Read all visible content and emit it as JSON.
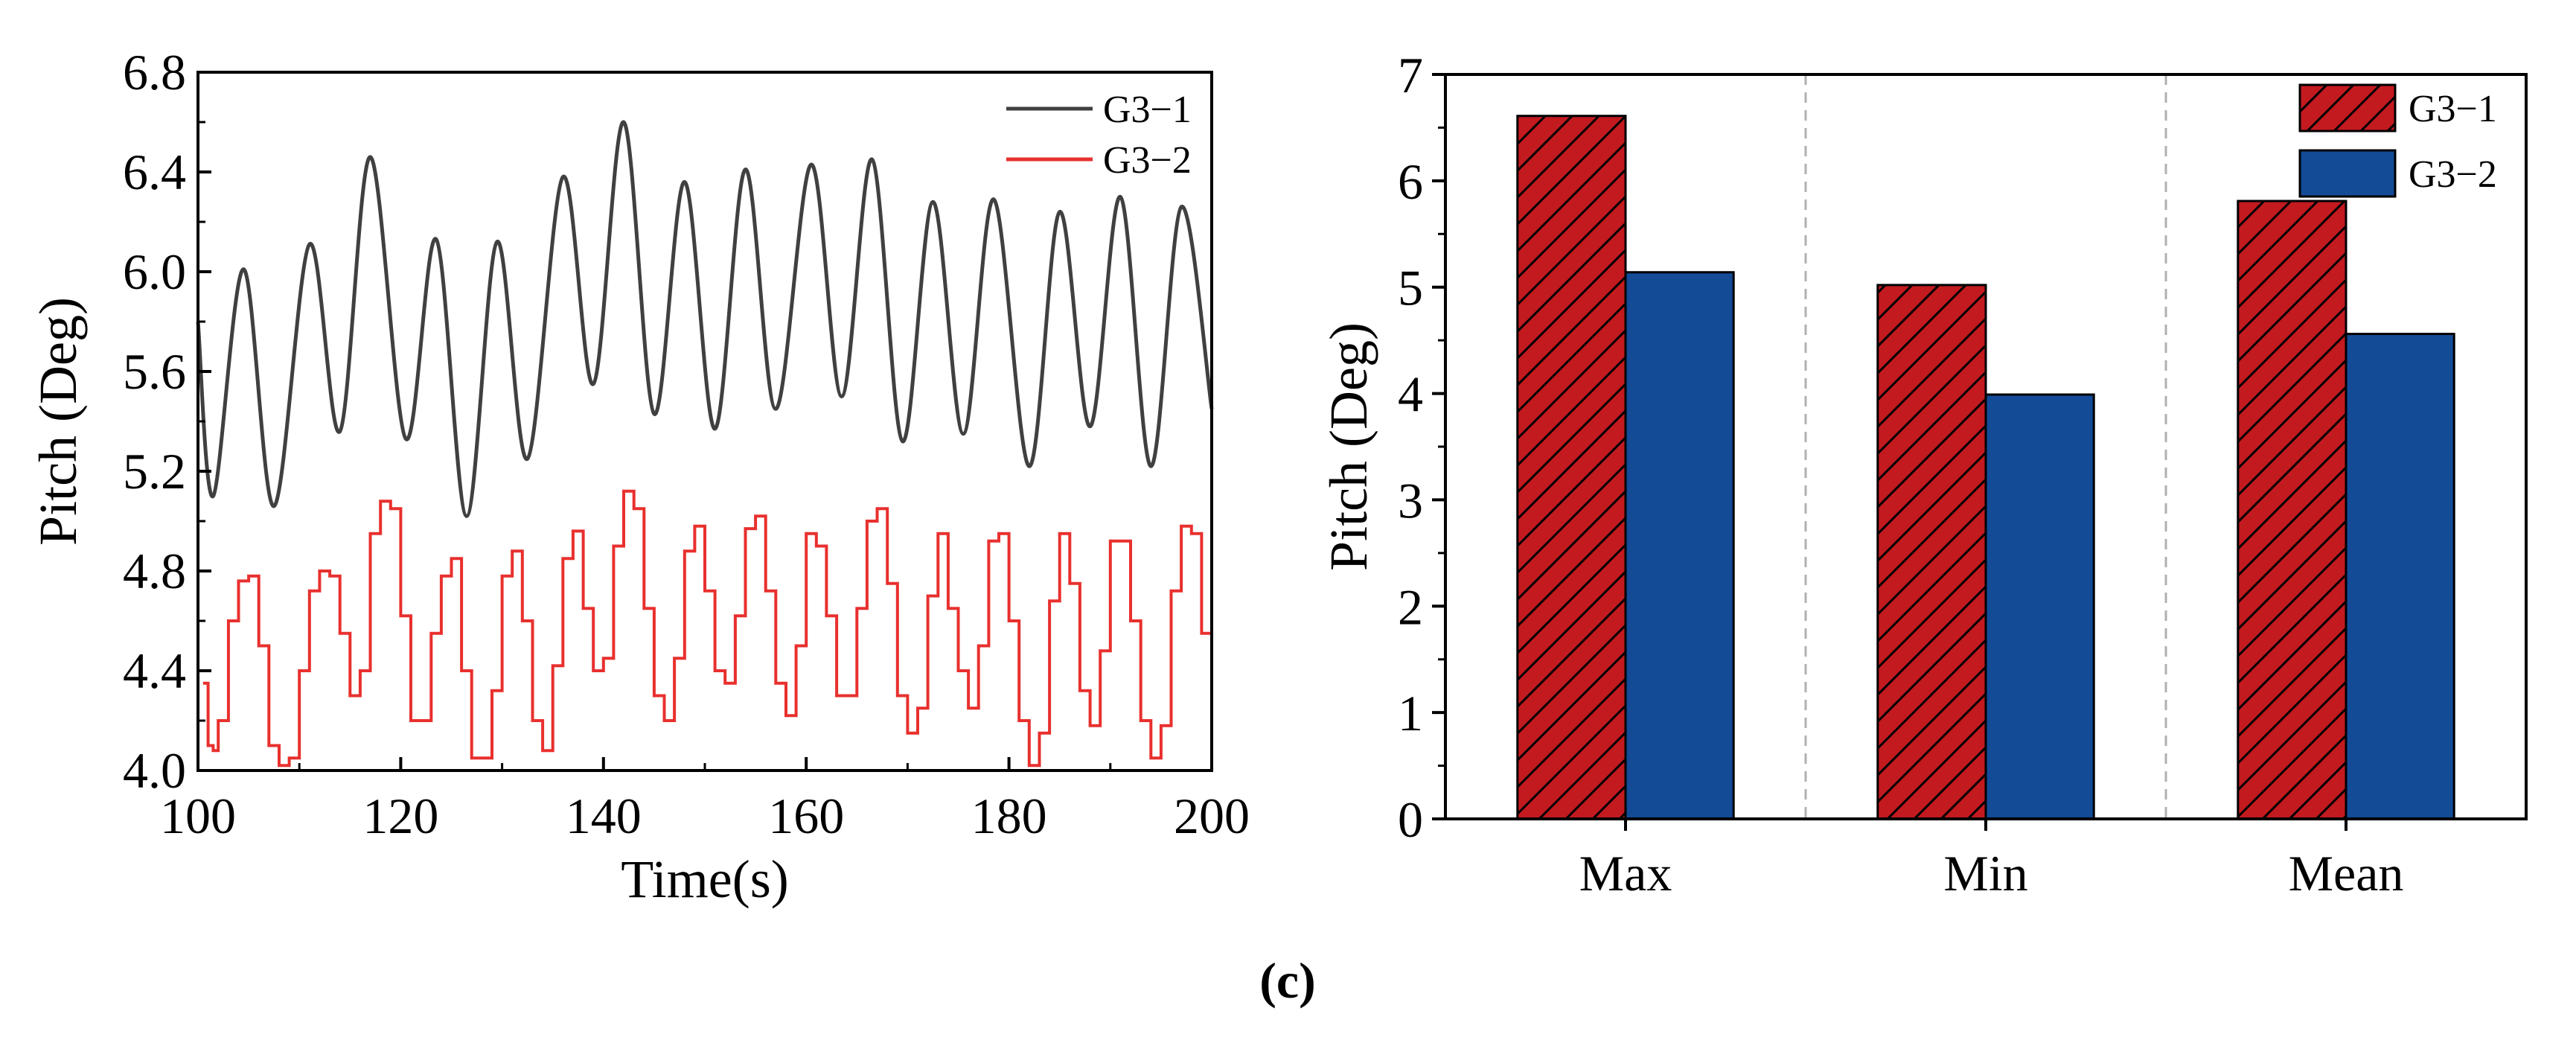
{
  "figure": {
    "caption": "(c)"
  },
  "chart_data": [
    {
      "type": "line",
      "xlabel": "Time(s)",
      "ylabel": "Pitch (Deg)",
      "xlim": [
        100,
        200
      ],
      "ylim": [
        4.0,
        6.8
      ],
      "xticks": [
        "100",
        "120",
        "140",
        "160",
        "180",
        "200"
      ],
      "yticks": [
        "4.0",
        "4.4",
        "4.8",
        "5.2",
        "5.6",
        "6.0",
        "6.4",
        "6.8"
      ],
      "legend_position": "top-right",
      "series": [
        {
          "name": "G3−1",
          "color": "#404040",
          "x": [
            100,
            101.5,
            104.5,
            107.5,
            111,
            114,
            117,
            120.5,
            123.5,
            126.5,
            129.5,
            132.5,
            136,
            139,
            142,
            145,
            148,
            151,
            154,
            157,
            160.5,
            163.5,
            166.5,
            169.5,
            172.5,
            175.5,
            178.5,
            182,
            185,
            188,
            191,
            194,
            197,
            200
          ],
          "y": [
            5.8,
            5.1,
            6.01,
            5.06,
            6.11,
            5.36,
            6.46,
            5.33,
            6.13,
            5.02,
            6.12,
            5.25,
            6.38,
            5.55,
            6.6,
            5.43,
            6.36,
            5.37,
            6.41,
            5.45,
            6.43,
            5.5,
            6.45,
            5.32,
            6.28,
            5.35,
            6.29,
            5.22,
            6.24,
            5.38,
            6.3,
            5.22,
            6.26,
            5.45
          ]
        },
        {
          "name": "G3−2",
          "color": "#e8302e",
          "x": [
            100.5,
            101,
            101.5,
            102,
            103,
            104,
            105,
            106,
            107,
            108,
            109,
            110,
            111,
            112,
            113,
            114,
            115,
            116,
            117,
            118,
            119,
            120,
            121,
            122,
            123,
            124,
            125,
            126,
            127,
            128,
            129,
            130,
            131,
            132,
            133,
            134,
            135,
            136,
            137,
            138,
            139,
            140,
            141,
            142,
            143,
            144,
            145,
            146,
            147,
            148,
            149,
            150,
            151,
            152,
            153,
            154,
            155,
            156,
            157,
            158,
            159,
            160,
            161,
            162,
            163,
            164,
            165,
            166,
            167,
            168,
            169,
            170,
            171,
            172,
            173,
            174,
            175,
            176,
            177,
            178,
            179,
            180,
            181,
            182,
            183,
            184,
            185,
            186,
            187,
            188,
            189,
            190,
            191,
            192,
            193,
            194,
            195,
            196,
            197,
            198,
            199,
            200
          ],
          "y": [
            4.35,
            4.1,
            4.08,
            4.2,
            4.6,
            4.76,
            4.78,
            4.5,
            4.1,
            4.02,
            4.05,
            4.4,
            4.72,
            4.8,
            4.78,
            4.55,
            4.3,
            4.4,
            4.95,
            5.08,
            5.05,
            4.62,
            4.2,
            4.2,
            4.55,
            4.78,
            4.85,
            4.4,
            4.05,
            4.05,
            4.32,
            4.78,
            4.88,
            4.6,
            4.2,
            4.08,
            4.42,
            4.85,
            4.96,
            4.65,
            4.4,
            4.45,
            4.9,
            5.12,
            5.05,
            4.65,
            4.3,
            4.2,
            4.45,
            4.88,
            4.98,
            4.72,
            4.4,
            4.35,
            4.62,
            4.97,
            5.02,
            4.72,
            4.35,
            4.22,
            4.5,
            4.95,
            4.9,
            4.62,
            4.3,
            4.3,
            4.65,
            5.0,
            5.05,
            4.75,
            4.3,
            4.15,
            4.25,
            4.7,
            4.95,
            4.65,
            4.4,
            4.25,
            4.5,
            4.92,
            4.95,
            4.6,
            4.2,
            4.02,
            4.15,
            4.68,
            4.95,
            4.75,
            4.32,
            4.18,
            4.48,
            4.92,
            4.92,
            4.6,
            4.2,
            4.05,
            4.18,
            4.72,
            4.98,
            4.95,
            4.55,
            4.4
          ]
        }
      ]
    },
    {
      "type": "bar",
      "xlabel": "",
      "ylabel": "Pitch (Deg)",
      "categories": [
        "Max",
        "Min",
        "Mean"
      ],
      "ylim": [
        0,
        7
      ],
      "yticks": [
        "0",
        "1",
        "2",
        "3",
        "4",
        "5",
        "6",
        "7"
      ],
      "legend_position": "top-right",
      "series": [
        {
          "name": "G3−1",
          "color": "#c21a1f",
          "pattern": "hatched",
          "values": [
            6.61,
            5.02,
            5.81
          ]
        },
        {
          "name": "G3−2",
          "color": "#134b97",
          "pattern": "solid",
          "values": [
            5.14,
            3.99,
            4.56
          ]
        }
      ]
    }
  ]
}
